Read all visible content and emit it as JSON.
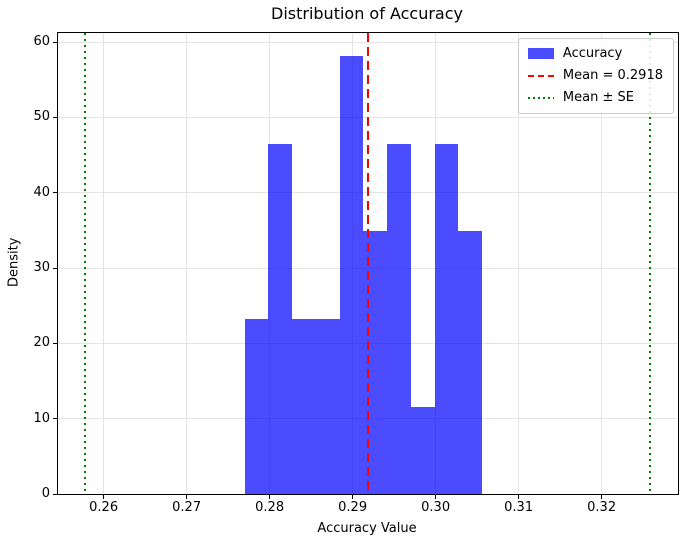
{
  "chart_data": {
    "type": "bar",
    "subtype": "histogram",
    "title": "Distribution of Accuracy",
    "xlabel": "Accuracy Value",
    "ylabel": "Density",
    "xlim": [
      0.2545,
      0.3292
    ],
    "ylim": [
      0,
      61.2
    ],
    "grid": true,
    "legend_position": "upper right",
    "x_ticks": [
      0.26,
      0.27,
      0.28,
      0.29,
      0.3,
      0.31,
      0.32
    ],
    "x_tick_labels": [
      "0.26",
      "0.27",
      "0.28",
      "0.29",
      "0.30",
      "0.31",
      "0.32"
    ],
    "y_ticks": [
      0,
      10,
      20,
      30,
      40,
      50,
      60
    ],
    "y_tick_labels": [
      "0",
      "10",
      "20",
      "30",
      "40",
      "50",
      "60"
    ],
    "bins": {
      "edges": [
        0.277,
        0.27986,
        0.28272,
        0.28558,
        0.28844,
        0.2913,
        0.29416,
        0.29702,
        0.29988,
        0.30274,
        0.3056
      ],
      "densities": [
        23.2,
        46.5,
        23.2,
        23.2,
        58.1,
        34.9,
        46.5,
        11.6,
        46.5,
        34.9
      ]
    },
    "series_color": "rgba(0,0,255,0.7)",
    "mean_line": {
      "value": 0.2918,
      "color": "#ff0000",
      "linestyle": "dashed"
    },
    "se_lines": {
      "values": [
        0.2578,
        0.3258
      ],
      "color": "#008000",
      "linestyle": "dotted"
    },
    "legend": {
      "items": [
        {
          "label": "Accuracy",
          "swatch": "patch",
          "color": "rgba(0,0,255,0.7)"
        },
        {
          "label": "Mean = 0.2918",
          "swatch": "dashed-line",
          "color": "#ff0000"
        },
        {
          "label": "Mean ± SE",
          "swatch": "dotted-line",
          "color": "#008000"
        }
      ]
    }
  }
}
